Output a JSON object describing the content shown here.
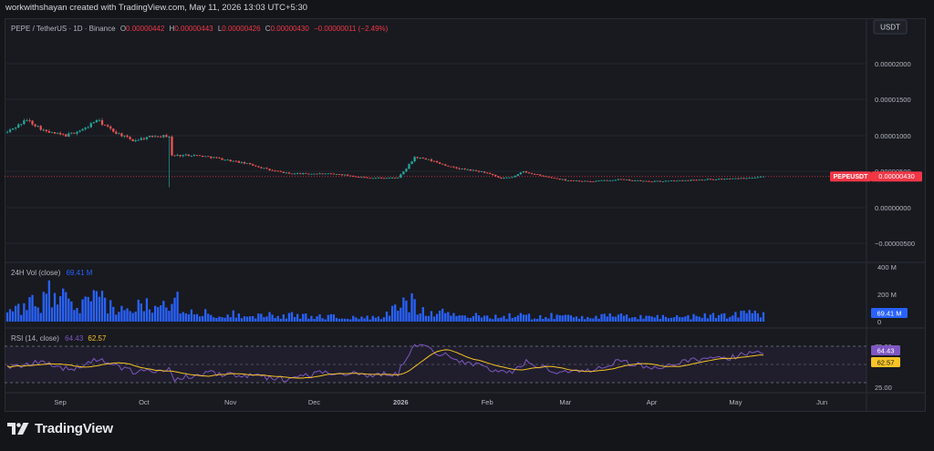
{
  "header": {
    "text": "workwithshayan created with TradingView.com, May 11, 2026 13:03 UTC+5:30"
  },
  "price_pane": {
    "symbol_label": "PEPE / TetherUS · 1D · Binance",
    "o_label": "O",
    "o_value": "0.00000442",
    "h_label": "H",
    "h_value": "0.00000443",
    "l_label": "L",
    "l_value": "0.00000426",
    "c_label": "C",
    "c_value": "0.00000430",
    "change": "−0.00000011 (−2.49%)",
    "currency_badge": "USDT",
    "last_price_tag": "PEPEUSDT",
    "last_price_value": "0.00000430",
    "y_ticks": [
      "0.00002000",
      "0.00001500",
      "0.00001000",
      "0.00000500",
      "0.00000000",
      "−0.00000500"
    ]
  },
  "volume_pane": {
    "label": "24H Vol (close)",
    "value": "69.41 M",
    "y_ticks": [
      "400 M",
      "200 M",
      "0"
    ],
    "last_tag": "69.41 M"
  },
  "rsi_pane": {
    "label": "RSI (14, close)",
    "rsi_value": "64.43",
    "ma_value": "62.57",
    "y_ticks": [
      "75.00",
      "25.00"
    ],
    "rsi_tag": "64.43",
    "ma_tag": "62.57"
  },
  "x_axis": {
    "labels": [
      {
        "text": "Sep",
        "date": "2025-09-01",
        "bold": false
      },
      {
        "text": "Oct",
        "date": "2025-10-01",
        "bold": false
      },
      {
        "text": "Nov",
        "date": "2025-11-01",
        "bold": false
      },
      {
        "text": "Dec",
        "date": "2025-12-01",
        "bold": false
      },
      {
        "text": "2026",
        "date": "2026-01-01",
        "bold": true
      },
      {
        "text": "Feb",
        "date": "2026-02-01",
        "bold": false
      },
      {
        "text": "Mar",
        "date": "2026-03-01",
        "bold": false
      },
      {
        "text": "Apr",
        "date": "2026-04-01",
        "bold": false
      },
      {
        "text": "May",
        "date": "2026-05-01",
        "bold": false
      },
      {
        "text": "Jun",
        "date": "2026-06-01",
        "bold": false
      }
    ]
  },
  "footer": {
    "brand": "TradingView"
  },
  "colors": {
    "up": "#26a69a",
    "down": "#ef5350",
    "volume": "#2962ff",
    "rsi": "#7e57c2",
    "rsi_ma": "#f7c325",
    "text": "#b2b5be",
    "last_tag": "#f23645"
  },
  "chart_data": {
    "type": "candlestick",
    "first_date": "2025-08-13",
    "last_date": "2026-05-11",
    "price_ylim": [
      -5e-06,
      2e-05
    ],
    "rsi_ylim": [
      25,
      75
    ],
    "volume_ylim_M": [
      0,
      400
    ],
    "last_close": 4.3e-06,
    "price_anchors": [
      [
        "2025-08-13",
        1.05
      ],
      [
        "2025-08-20",
        1.22
      ],
      [
        "2025-08-27",
        1.05
      ],
      [
        "2025-09-03",
        1.0
      ],
      [
        "2025-09-10",
        1.1
      ],
      [
        "2025-09-14",
        1.22
      ],
      [
        "2025-09-20",
        1.06
      ],
      [
        "2025-09-27",
        0.93
      ],
      [
        "2025-10-05",
        1.0
      ],
      [
        "2025-10-10",
        0.99
      ],
      [
        "2025-10-11",
        0.72
      ],
      [
        "2025-10-18",
        0.73
      ],
      [
        "2025-10-25",
        0.7
      ],
      [
        "2025-11-01",
        0.65
      ],
      [
        "2025-11-08",
        0.6
      ],
      [
        "2025-11-15",
        0.52
      ],
      [
        "2025-11-22",
        0.47
      ],
      [
        "2025-12-01",
        0.47
      ],
      [
        "2025-12-10",
        0.46
      ],
      [
        "2025-12-20",
        0.41
      ],
      [
        "2025-12-31",
        0.41
      ],
      [
        "2026-01-03",
        0.54
      ],
      [
        "2026-01-06",
        0.7
      ],
      [
        "2026-01-12",
        0.65
      ],
      [
        "2026-01-20",
        0.55
      ],
      [
        "2026-01-31",
        0.49
      ],
      [
        "2026-02-06",
        0.4
      ],
      [
        "2026-02-10",
        0.42
      ],
      [
        "2026-02-14",
        0.5
      ],
      [
        "2026-02-20",
        0.44
      ],
      [
        "2026-03-01",
        0.38
      ],
      [
        "2026-03-10",
        0.36
      ],
      [
        "2026-03-20",
        0.39
      ],
      [
        "2026-03-31",
        0.36
      ],
      [
        "2026-04-10",
        0.37
      ],
      [
        "2026-04-20",
        0.39
      ],
      [
        "2026-05-01",
        0.4
      ],
      [
        "2026-05-11",
        0.43
      ]
    ],
    "volume_anchors": [
      [
        "2025-08-13",
        50
      ],
      [
        "2025-08-25",
        150
      ],
      [
        "2025-08-30",
        230
      ],
      [
        "2025-09-06",
        80
      ],
      [
        "2025-09-14",
        160
      ],
      [
        "2025-09-24",
        70
      ],
      [
        "2025-10-10",
        190
      ],
      [
        "2025-10-20",
        60
      ],
      [
        "2025-11-10",
        50
      ],
      [
        "2025-12-01",
        40
      ],
      [
        "2025-12-25",
        25
      ],
      [
        "2026-01-03",
        150
      ],
      [
        "2026-01-10",
        90
      ],
      [
        "2026-01-25",
        40
      ],
      [
        "2026-03-01",
        40
      ],
      [
        "2026-04-15",
        35
      ],
      [
        "2026-05-11",
        69.41
      ]
    ],
    "rsi_anchors": [
      [
        "2025-08-13",
        45
      ],
      [
        "2025-08-25",
        55
      ],
      [
        "2025-09-05",
        42
      ],
      [
        "2025-09-15",
        58
      ],
      [
        "2025-09-28",
        38
      ],
      [
        "2025-10-10",
        45
      ],
      [
        "2025-10-12",
        30
      ],
      [
        "2025-10-25",
        38
      ],
      [
        "2025-11-08",
        34
      ],
      [
        "2025-11-20",
        30
      ],
      [
        "2025-12-05",
        40
      ],
      [
        "2025-12-20",
        35
      ],
      [
        "2025-12-31",
        38
      ],
      [
        "2026-01-06",
        80
      ],
      [
        "2026-01-15",
        65
      ],
      [
        "2026-01-31",
        45
      ],
      [
        "2026-02-10",
        38
      ],
      [
        "2026-02-15",
        55
      ],
      [
        "2026-02-25",
        40
      ],
      [
        "2026-03-10",
        42
      ],
      [
        "2026-03-20",
        55
      ],
      [
        "2026-04-01",
        45
      ],
      [
        "2026-04-15",
        55
      ],
      [
        "2026-05-01",
        60
      ],
      [
        "2026-05-08",
        71
      ],
      [
        "2026-05-11",
        64.43
      ]
    ],
    "rsi_ma_last": 62.57
  }
}
